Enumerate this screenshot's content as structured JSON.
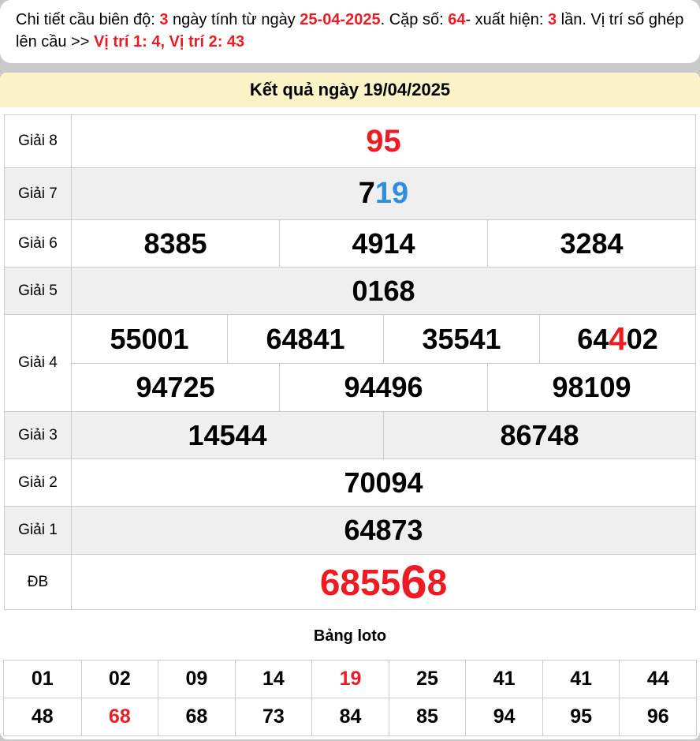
{
  "colors": {
    "accent_red": "#ed1c24",
    "accent_blue": "#2f8fde",
    "header_yellow": "#faf3c8",
    "row_gray": "#efefef",
    "border_gray": "#cccccc"
  },
  "note": {
    "t1": "Chi tiết cầu biên độ: ",
    "v1": "3",
    "t2": " ngày tính từ ngày ",
    "v2": "25-04-2025",
    "t3": ". Cặp số: ",
    "v3": "64",
    "t4": "- xuất hiện: ",
    "v4": "3",
    "t5": " lần. Vị trí số ghép lên cầu >> ",
    "v5": "Vị trí 1: 4, Vị trí 2: 43"
  },
  "header": {
    "title": "Kết quả ngày 19/04/2025"
  },
  "results": {
    "g8_label": "Giải 8",
    "g8": "95",
    "g7_label": "Giải 7",
    "g7_black": "7",
    "g7_blue": "19",
    "g6_label": "Giải 6",
    "g6": [
      "8385",
      "4914",
      "3284"
    ],
    "g5_label": "Giải 5",
    "g5": "0168",
    "g4_label": "Giải 4",
    "g4_r1": [
      "55001",
      "64841",
      "35541"
    ],
    "g4_r1_special": {
      "pre": "64",
      "red": "4",
      "post": "02"
    },
    "g4_r2": [
      "94725",
      "94496",
      "98109"
    ],
    "g3_label": "Giải 3",
    "g3": [
      "14544",
      "86748"
    ],
    "g2_label": "Giải 2",
    "g2": "70094",
    "g1_label": "Giải 1",
    "g1": "64873",
    "db_label": "ĐB",
    "db_pre": "6855",
    "db_big": "6",
    "db_post": "8"
  },
  "loto": {
    "title": "Bảng loto",
    "row1": [
      {
        "v": "01"
      },
      {
        "v": "02"
      },
      {
        "v": "09"
      },
      {
        "v": "14"
      },
      {
        "v": "19"
      },
      {
        "v": "25"
      },
      {
        "v": "41"
      },
      {
        "v": "41"
      },
      {
        "v": "44"
      }
    ],
    "row2": [
      {
        "v": "48"
      },
      {
        "v": "68"
      },
      {
        "v": "68"
      },
      {
        "v": "73"
      },
      {
        "v": "84"
      },
      {
        "v": "85"
      },
      {
        "v": "94"
      },
      {
        "v": "95"
      },
      {
        "v": "96"
      }
    ]
  }
}
